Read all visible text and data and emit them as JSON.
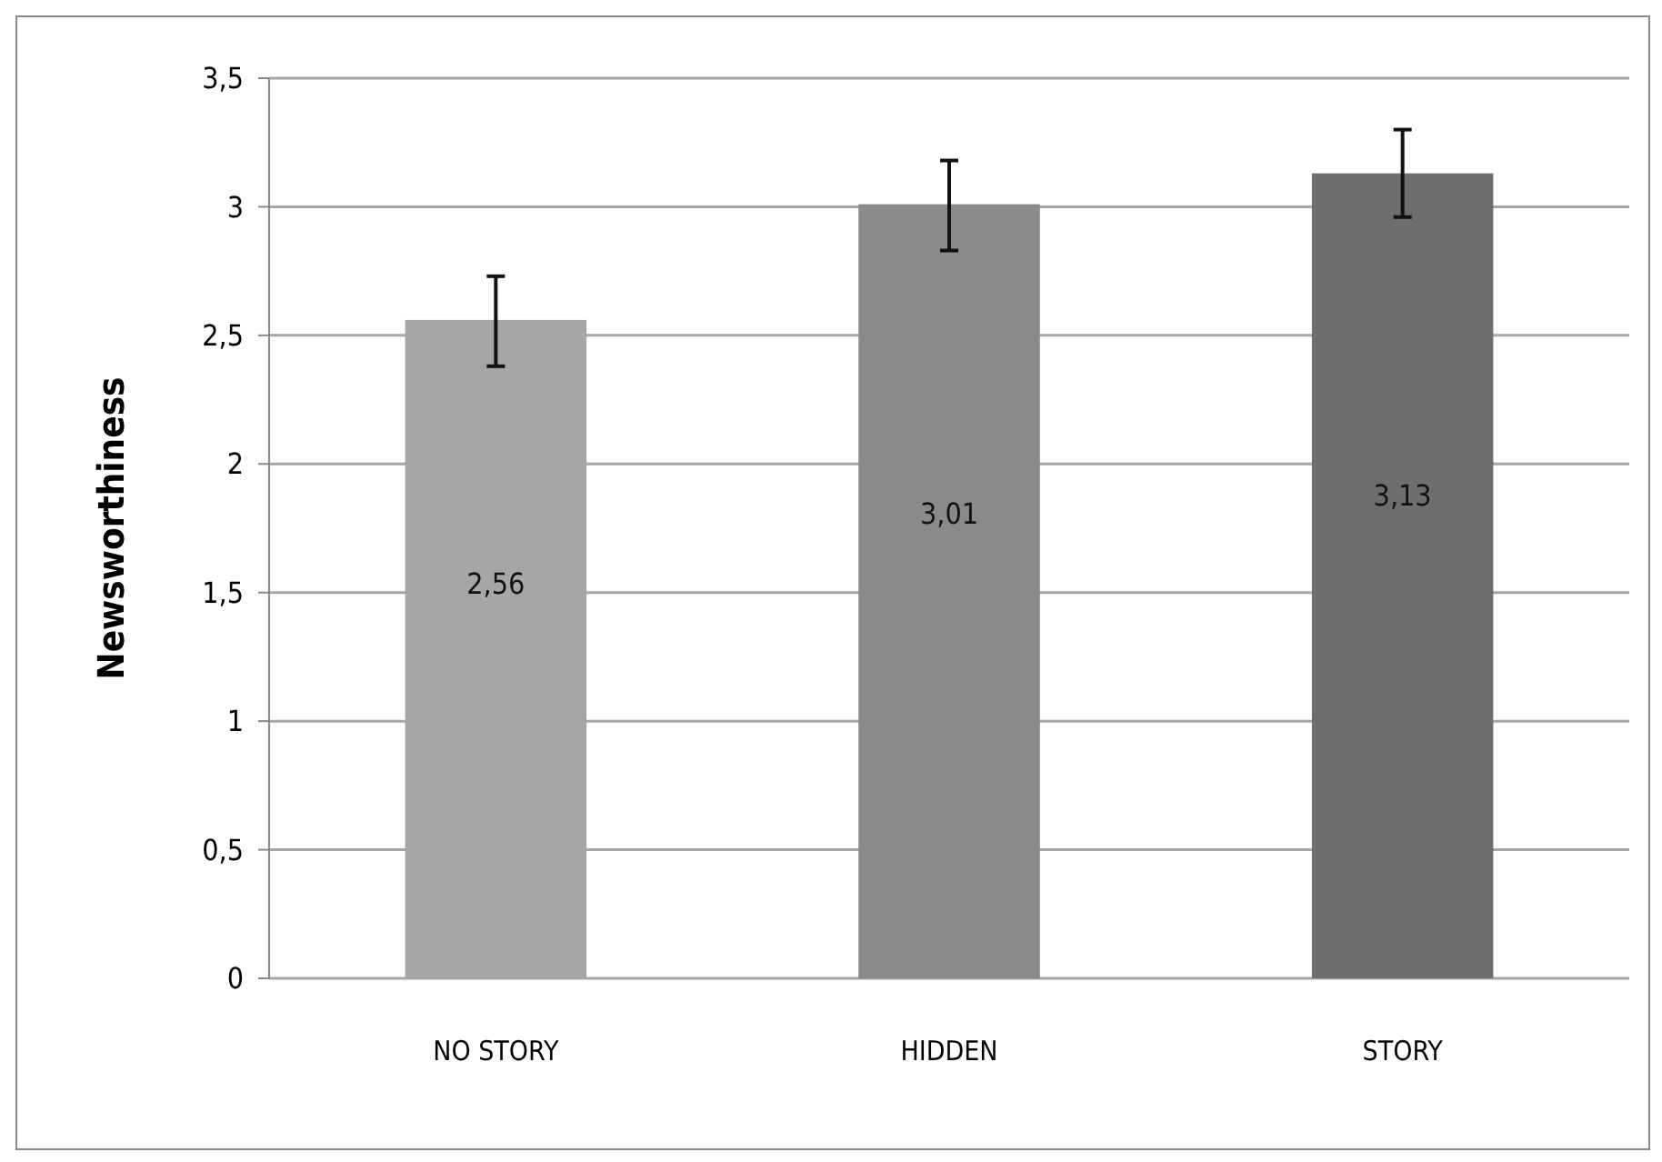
{
  "chart_data": {
    "type": "bar",
    "ylabel": "Newsworthiness",
    "categories": [
      "NO STORY",
      "HIDDEN",
      "STORY"
    ],
    "values": [
      2.56,
      3.01,
      3.13
    ],
    "colors": [
      "#a6a6a6",
      "#8a8a8a",
      "#6e6e6e"
    ],
    "errors": [
      [
        2.38,
        2.73
      ],
      [
        2.83,
        3.18
      ],
      [
        2.96,
        3.3
      ]
    ],
    "value_labels": [
      "2,56",
      "3,01",
      "3,13"
    ],
    "ylim": [
      0,
      3.5
    ],
    "yticks": [
      0,
      {
        "value": 0.5,
        "label": "0,5"
      },
      1,
      {
        "value": 1.5,
        "label": "1,5"
      },
      2,
      {
        "value": 2.5,
        "label": "2,5"
      },
      3,
      {
        "value": 3.5,
        "label": "3,5"
      }
    ],
    "grid": "y"
  }
}
